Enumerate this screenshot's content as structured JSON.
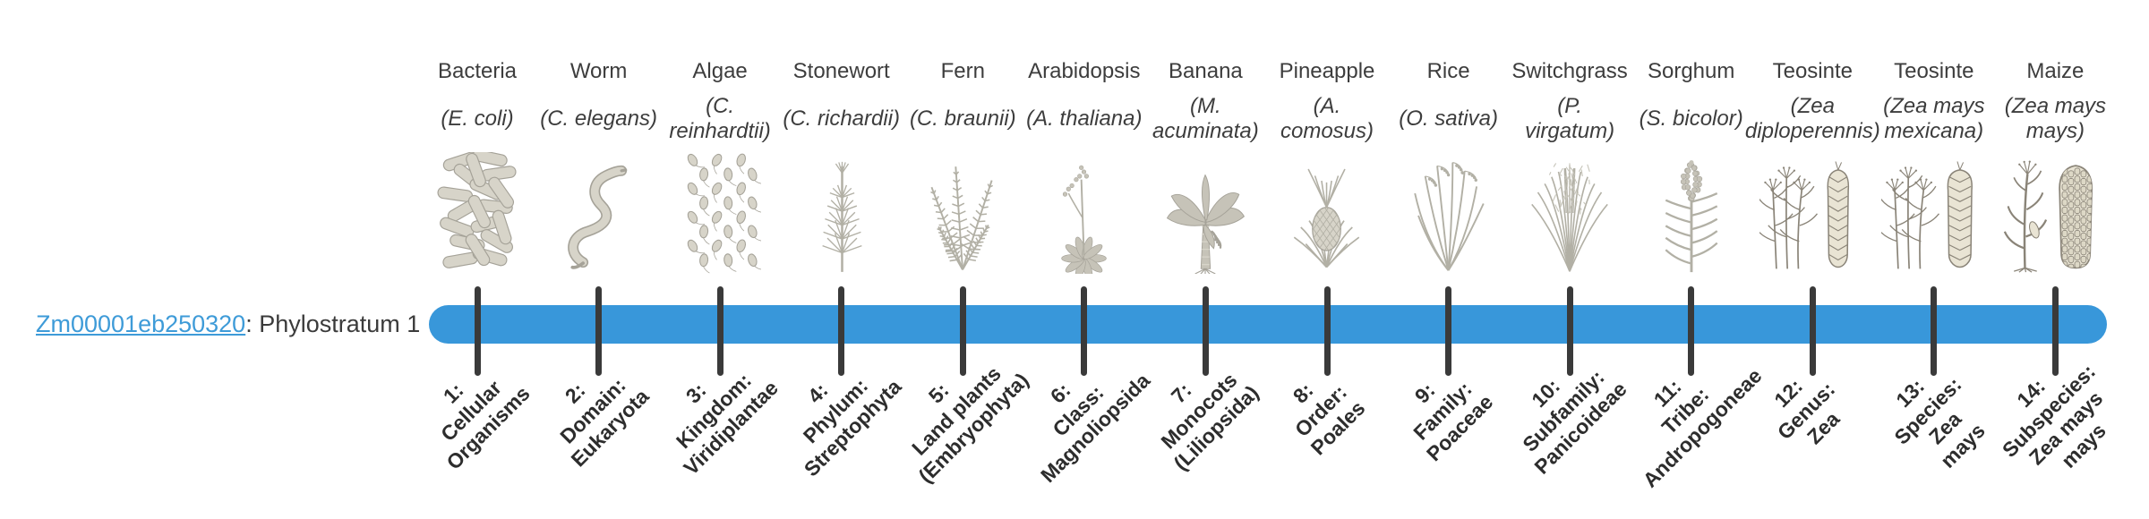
{
  "gene": {
    "id": "Zm00001eb250320",
    "suffix": ": Phylostratum 1"
  },
  "timeline": {
    "phylostratum_count": 14,
    "highlighted_stratum": "Phylostratum 1"
  },
  "colors": {
    "bar_blue": "#3897da",
    "link_blue": "#3e9bd8",
    "tick_dark": "#3a3a3a",
    "label_text": "#3d3d3d",
    "stratum_text": "#2d2d2d",
    "art_gray": "#b2b0a5",
    "art_ink": "#8a8478",
    "art_cream": "#e9e4d4"
  },
  "organisms": [
    {
      "name": "Bacteria",
      "sci": "(E. coli)",
      "icon": "bacteria-icon",
      "stratum": "1:\nCellular\nOrganisms"
    },
    {
      "name": "Worm",
      "sci": "(C. elegans)",
      "icon": "worm-icon",
      "stratum": "2:\nDomain:\nEukaryota"
    },
    {
      "name": "Algae",
      "sci": "(C.\nreinhardtii)",
      "icon": "algae-icon",
      "stratum": "3:\nKingdom:\nViridiplantae"
    },
    {
      "name": "Stonewort",
      "sci": "(C. richardii)",
      "icon": "stonewort-icon",
      "stratum": "4:\nPhylum:\nStreptophyta"
    },
    {
      "name": "Fern",
      "sci": "(C. braunii)",
      "icon": "fern-icon",
      "stratum": "5:\nLand plants\n(Embryophyta)"
    },
    {
      "name": "Arabidopsis",
      "sci": "(A. thaliana)",
      "icon": "arabidopsis-icon",
      "stratum": "6:\nClass:\nMagnoliopsida"
    },
    {
      "name": "Banana",
      "sci": "(M.\nacuminata)",
      "icon": "banana-icon",
      "stratum": "7:\nMonocots\n(Liliopsida)"
    },
    {
      "name": "Pineapple",
      "sci": "(A.\ncomosus)",
      "icon": "pineapple-icon",
      "stratum": "8:\nOrder:\nPoales"
    },
    {
      "name": "Rice",
      "sci": "(O. sativa)",
      "icon": "rice-icon",
      "stratum": "9:\nFamily:\nPoaceae"
    },
    {
      "name": "Switchgrass",
      "sci": "(P.\nvirgatum)",
      "icon": "switchgrass-icon",
      "stratum": "10:\nSubfamily:\nPanicoideae"
    },
    {
      "name": "Sorghum",
      "sci": "(S. bicolor)",
      "icon": "sorghum-icon",
      "stratum": "11:\nTribe:\nAndropogoneae"
    },
    {
      "name": "Teosinte",
      "sci": "(Zea\ndiploperennis)",
      "icon": "teosinte-diploperennis-icon",
      "stratum": "12:\nGenus:\nZea"
    },
    {
      "name": "Teosinte",
      "sci": "(Zea mays\nmexicana)",
      "icon": "teosinte-mexicana-icon",
      "stratum": "13:\nSpecies:\nZea\nmays"
    },
    {
      "name": "Maize",
      "sci": "(Zea mays\nmays)",
      "icon": "maize-icon",
      "stratum": "14:\nSubspecies:\nZea mays\nmays"
    }
  ]
}
